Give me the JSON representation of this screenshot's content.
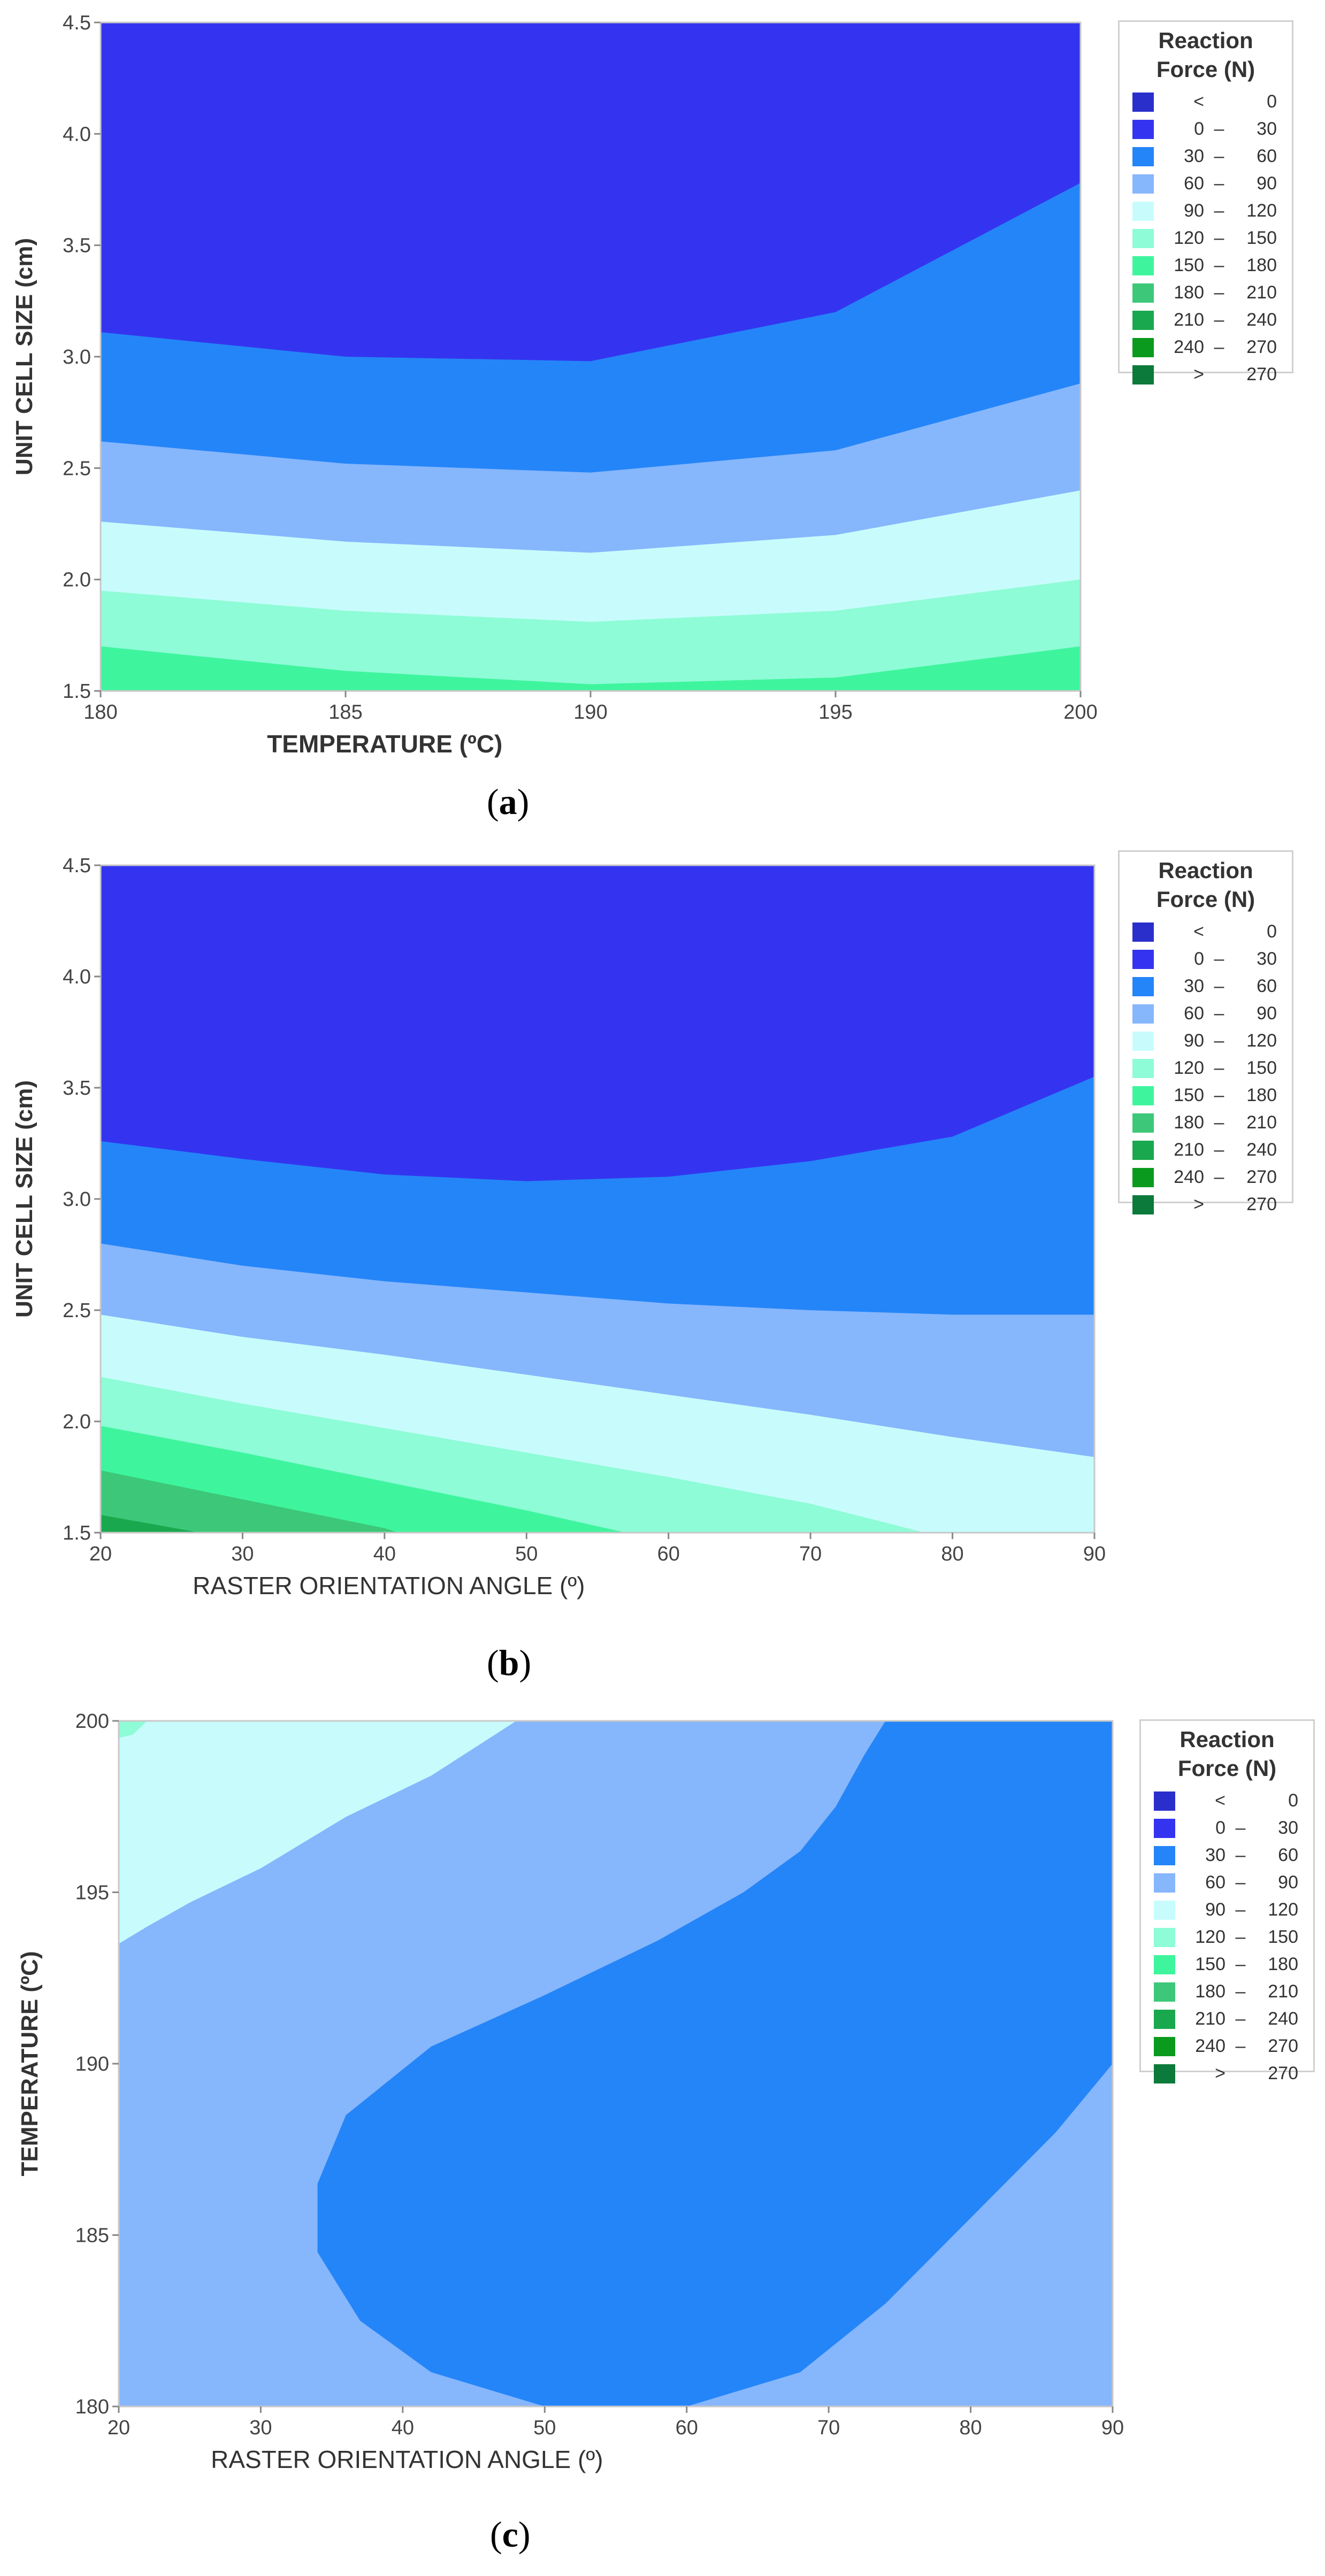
{
  "legend": {
    "title_line1": "Reaction",
    "title_line2_a": "Force (N)",
    "title_line2_b": "Force (N)",
    "title_line2_c": "Force (N)",
    "items": [
      {
        "lo": "<",
        "sep": "",
        "hi": "0",
        "color": "#2a2fcc"
      },
      {
        "lo": "0",
        "sep": "–",
        "hi": "30",
        "color": "#3434f0"
      },
      {
        "lo": "30",
        "sep": "–",
        "hi": "60",
        "color": "#2485f8"
      },
      {
        "lo": "60",
        "sep": "–",
        "hi": "90",
        "color": "#86b6fc"
      },
      {
        "lo": "90",
        "sep": "–",
        "hi": "120",
        "color": "#c8fcfc"
      },
      {
        "lo": "120",
        "sep": "–",
        "hi": "150",
        "color": "#8efcd6"
      },
      {
        "lo": "150",
        "sep": "–",
        "hi": "180",
        "color": "#3ef59e"
      },
      {
        "lo": "180",
        "sep": "–",
        "hi": "210",
        "color": "#3cc878"
      },
      {
        "lo": "210",
        "sep": "–",
        "hi": "240",
        "color": "#1aa84e"
      },
      {
        "lo": "240",
        "sep": "–",
        "hi": "270",
        "color": "#0a9a1e"
      },
      {
        "lo": ">",
        "sep": "",
        "hi": "270",
        "color": "#0c7a3a"
      }
    ]
  },
  "chart_data": [
    {
      "type": "contour",
      "title": "",
      "xlabel": "TEMPERATURE (ºC)",
      "ylabel": "UNIT CELL SIZE (cm)",
      "xlim": [
        180,
        200
      ],
      "ylim": [
        1.5,
        4.5
      ],
      "xticks": [
        "180",
        "185",
        "190",
        "195",
        "200"
      ],
      "yticks": [
        "1.5",
        "2.0",
        "2.5",
        "3.0",
        "3.5",
        "4.0",
        "4.5"
      ],
      "caption": "(a)",
      "caption_letter": "a",
      "boundaries": [
        {
          "upper_band": "0 – 30",
          "lower_band": "30 – 60",
          "points": [
            [
              180,
              3.11
            ],
            [
              185,
              3.0
            ],
            [
              190,
              2.98
            ],
            [
              195,
              3.2
            ],
            [
              200,
              3.78
            ]
          ]
        },
        {
          "upper_band": "30 – 60",
          "lower_band": "60 – 90",
          "points": [
            [
              180,
              2.62
            ],
            [
              185,
              2.52
            ],
            [
              190,
              2.48
            ],
            [
              195,
              2.58
            ],
            [
              200,
              2.88
            ]
          ]
        },
        {
          "upper_band": "60 – 90",
          "lower_band": "90 – 120",
          "points": [
            [
              180,
              2.26
            ],
            [
              185,
              2.17
            ],
            [
              190,
              2.12
            ],
            [
              195,
              2.2
            ],
            [
              200,
              2.4
            ]
          ]
        },
        {
          "upper_band": "90 – 120",
          "lower_band": "120 – 150",
          "points": [
            [
              180,
              1.95
            ],
            [
              185,
              1.86
            ],
            [
              190,
              1.81
            ],
            [
              195,
              1.86
            ],
            [
              200,
              2.0
            ]
          ]
        },
        {
          "upper_band": "120 – 150",
          "lower_band": "150 – 180",
          "points": [
            [
              180,
              1.7
            ],
            [
              185,
              1.59
            ],
            [
              190,
              1.53
            ],
            [
              195,
              1.56
            ],
            [
              200,
              1.7
            ]
          ]
        }
      ],
      "bands": [
        "0 – 30",
        "30 – 60",
        "60 – 90",
        "90 – 120",
        "120 – 150",
        "150 – 180"
      ]
    },
    {
      "type": "contour",
      "title": "",
      "xlabel": "RASTER ORIENTATION ANGLE (º)",
      "ylabel": "UNIT CELL SIZE (cm)",
      "xlim": [
        20,
        90
      ],
      "ylim": [
        1.5,
        4.5
      ],
      "xticks": [
        "20",
        "30",
        "40",
        "50",
        "60",
        "70",
        "80",
        "90"
      ],
      "yticks": [
        "1.5",
        "2.0",
        "2.5",
        "3.0",
        "3.5",
        "4.0",
        "4.5"
      ],
      "caption": "(b)",
      "caption_letter": "b",
      "boundaries": [
        {
          "upper_band": "0 – 30",
          "lower_band": "30 – 60",
          "points": [
            [
              20,
              3.26
            ],
            [
              30,
              3.18
            ],
            [
              40,
              3.11
            ],
            [
              50,
              3.08
            ],
            [
              60,
              3.1
            ],
            [
              70,
              3.17
            ],
            [
              80,
              3.28
            ],
            [
              90,
              3.55
            ]
          ]
        },
        {
          "upper_band": "30 – 60",
          "lower_band": "60 – 90",
          "points": [
            [
              20,
              2.8
            ],
            [
              30,
              2.7
            ],
            [
              40,
              2.63
            ],
            [
              50,
              2.58
            ],
            [
              60,
              2.53
            ],
            [
              70,
              2.5
            ],
            [
              80,
              2.48
            ],
            [
              90,
              2.48
            ]
          ]
        },
        {
          "upper_band": "60 – 90",
          "lower_band": "90 – 120",
          "points": [
            [
              20,
              2.48
            ],
            [
              30,
              2.38
            ],
            [
              40,
              2.3
            ],
            [
              50,
              2.21
            ],
            [
              60,
              2.12
            ],
            [
              70,
              2.03
            ],
            [
              80,
              1.93
            ],
            [
              90,
              1.84
            ]
          ]
        },
        {
          "upper_band": "90 – 120",
          "lower_band": "120 – 150",
          "points": [
            [
              20,
              2.2
            ],
            [
              30,
              2.08
            ],
            [
              40,
              1.97
            ],
            [
              50,
              1.86
            ],
            [
              60,
              1.75
            ],
            [
              70,
              1.63
            ],
            [
              75,
              1.55
            ],
            [
              78,
              1.5
            ]
          ]
        },
        {
          "upper_band": "120 – 150",
          "lower_band": "150 – 180",
          "points": [
            [
              20,
              1.98
            ],
            [
              30,
              1.86
            ],
            [
              40,
              1.73
            ],
            [
              50,
              1.6
            ],
            [
              57,
              1.5
            ]
          ]
        },
        {
          "upper_band": "150 – 180",
          "lower_band": "180 – 210",
          "points": [
            [
              20,
              1.78
            ],
            [
              30,
              1.65
            ],
            [
              40,
              1.52
            ],
            [
              41,
              1.5
            ]
          ]
        },
        {
          "upper_band": "180 – 210",
          "lower_band": "210 – 240",
          "points": [
            [
              20,
              1.58
            ],
            [
              27,
              1.5
            ]
          ]
        }
      ],
      "bands": [
        "0 – 30",
        "30 – 60",
        "60 – 90",
        "90 – 120",
        "120 – 150",
        "150 – 180",
        "180 – 210",
        "210 – 240"
      ]
    },
    {
      "type": "contour",
      "title": "",
      "xlabel": "RASTER ORIENTATION ANGLE (º)",
      "ylabel": "TEMPERATURE (ºC)",
      "xlim": [
        20,
        90
      ],
      "ylim": [
        180,
        200
      ],
      "xticks": [
        "20",
        "30",
        "40",
        "50",
        "60",
        "70",
        "80",
        "90"
      ],
      "yticks": [
        "180",
        "185",
        "190",
        "195",
        "200"
      ],
      "caption": "(c)",
      "caption_letter": "c",
      "background_band": "60 – 90",
      "regions": [
        {
          "band": "30 – 60",
          "points": [
            [
              74,
              200
            ],
            [
              90,
              200
            ],
            [
              90,
              190
            ],
            [
              86,
              188
            ],
            [
              80,
              185.5
            ],
            [
              74,
              183
            ],
            [
              68,
              181
            ],
            [
              60,
              180
            ],
            [
              50,
              180
            ],
            [
              42,
              181
            ],
            [
              37,
              182.5
            ],
            [
              34,
              184.5
            ],
            [
              34,
              186.5
            ],
            [
              36,
              188.5
            ],
            [
              42,
              190.5
            ],
            [
              50,
              192
            ],
            [
              58,
              193.6
            ],
            [
              64,
              195
            ],
            [
              68,
              196.2
            ],
            [
              70.5,
              197.5
            ],
            [
              72.5,
              199
            ]
          ]
        },
        {
          "band": "90 – 120",
          "points": [
            [
              20,
              200
            ],
            [
              48,
              200
            ],
            [
              42,
              198.4
            ],
            [
              36,
              197.2
            ],
            [
              30,
              195.7
            ],
            [
              25,
              194.7
            ],
            [
              22,
              194
            ],
            [
              20,
              193.5
            ]
          ]
        },
        {
          "band": "120 – 150",
          "points": [
            [
              20,
              200
            ],
            [
              22,
              200
            ],
            [
              21,
              199.6
            ],
            [
              20,
              199.5
            ]
          ]
        }
      ]
    }
  ]
}
